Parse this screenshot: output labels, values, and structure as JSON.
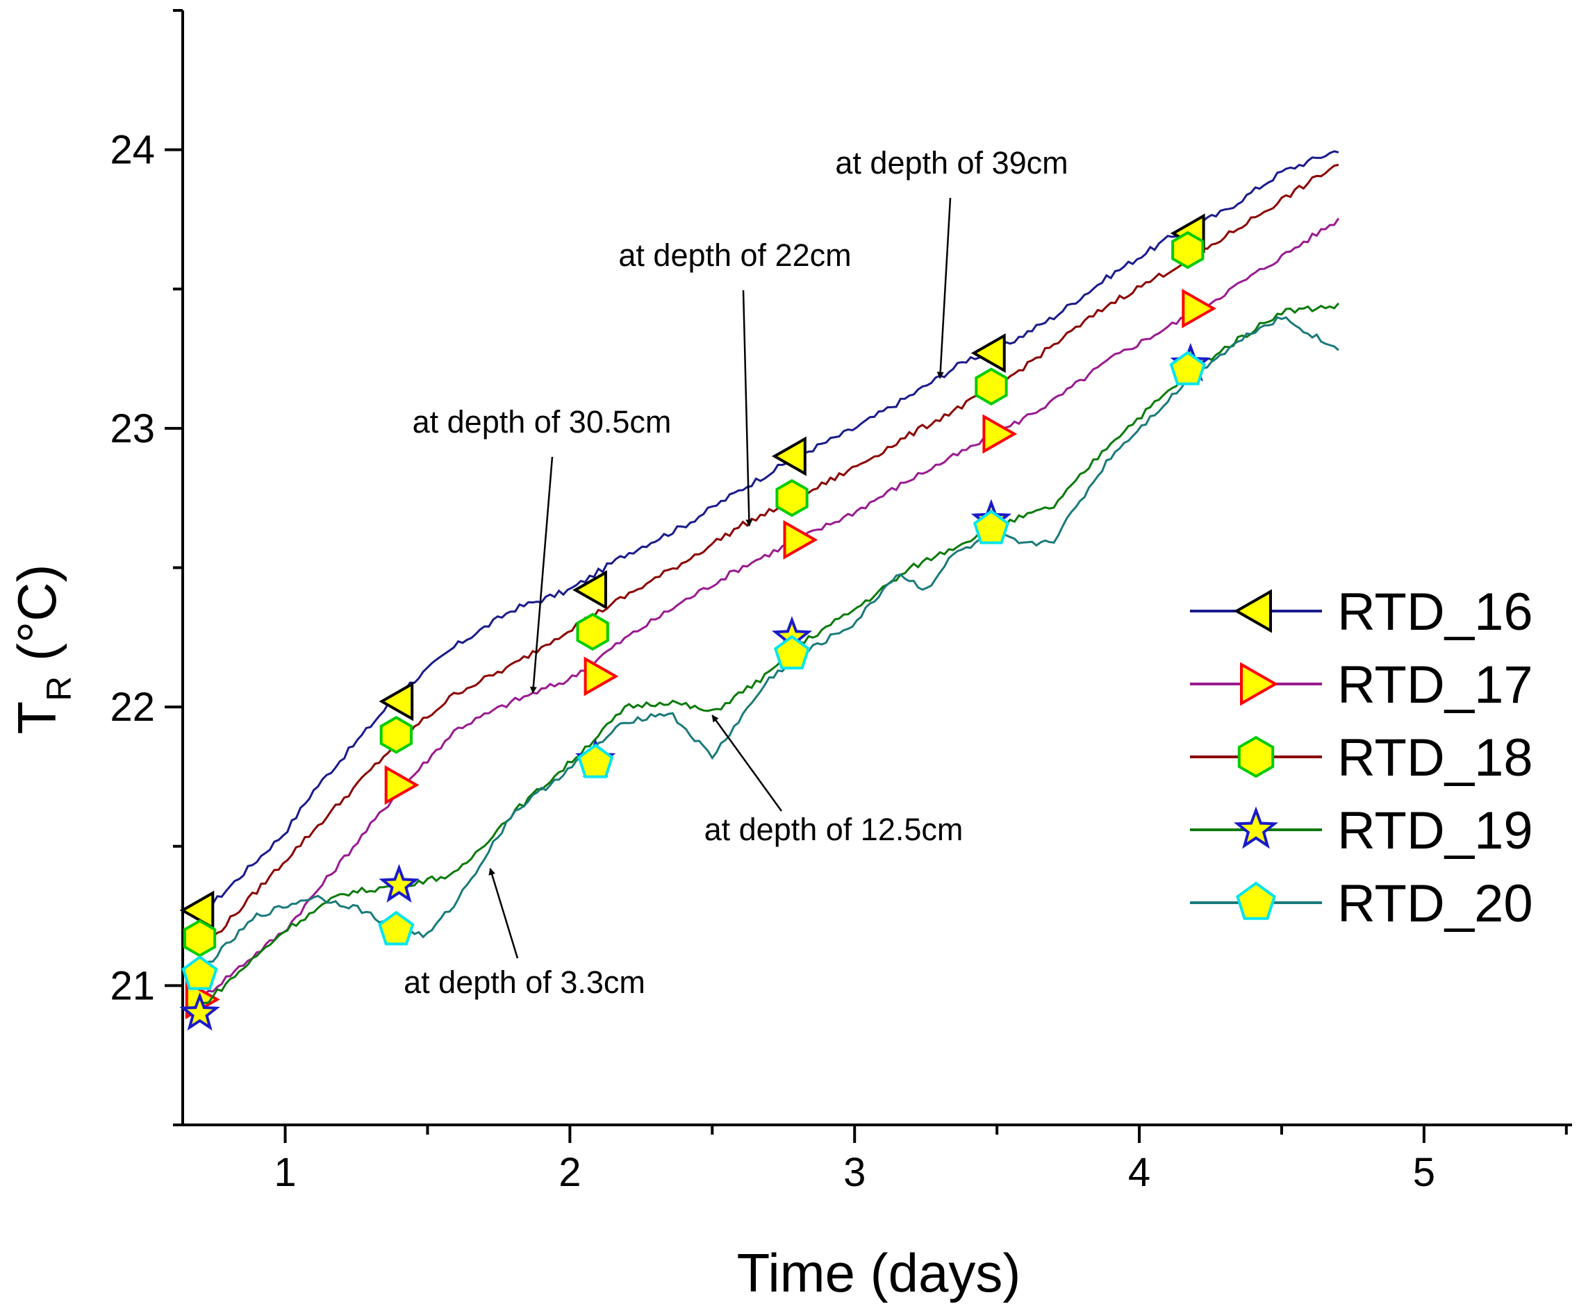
{
  "chart_data": {
    "type": "line",
    "title": "",
    "xlabel": "Time (days)",
    "ylabel_main": "T",
    "ylabel_sub": "R",
    "ylabel_unit": " (°C)",
    "xlim": [
      0.64,
      5.52
    ],
    "ylim": [
      20.5,
      24.5
    ],
    "x_ticks": [
      1,
      2,
      3,
      4,
      5
    ],
    "x_tick_labels": [
      "1",
      "2",
      "3",
      "4",
      "5"
    ],
    "y_ticks": [
      21,
      22,
      23,
      24
    ],
    "y_tick_labels": [
      "21",
      "22",
      "23",
      "24"
    ],
    "grid": false,
    "legend_position": "right",
    "series": [
      {
        "name": "RTD_16",
        "color": "#1a1a8c",
        "marker": "triangle-left",
        "marker_fill": "#ffff00",
        "marker_edge": "#000000",
        "x": [
          0.7,
          1.0,
          1.1,
          1.4,
          1.6,
          1.8,
          2.0,
          2.2,
          2.4,
          2.6,
          2.8,
          3.0,
          3.2,
          3.4,
          3.5,
          3.7,
          3.9,
          4.1,
          4.3,
          4.5,
          4.7
        ],
        "y": [
          21.25,
          21.55,
          21.7,
          22.05,
          22.22,
          22.35,
          22.42,
          22.55,
          22.65,
          22.78,
          22.9,
          23.0,
          23.12,
          23.25,
          23.28,
          23.4,
          23.55,
          23.68,
          23.78,
          23.92,
          24.0
        ],
        "marker_x": [
          0.7,
          1.4,
          2.08,
          2.78,
          3.48,
          4.18
        ],
        "marker_y": [
          21.27,
          22.02,
          22.42,
          22.9,
          23.27,
          23.7
        ]
      },
      {
        "name": "RTD_17",
        "color": "#9a1a90",
        "marker": "triangle-right",
        "marker_fill": "#ffff00",
        "marker_edge": "#ff0000",
        "x": [
          0.7,
          1.0,
          1.4,
          1.6,
          1.8,
          2.0,
          2.2,
          2.4,
          2.6,
          2.8,
          3.0,
          3.2,
          3.5,
          3.7,
          3.9,
          4.2,
          4.4,
          4.7
        ],
        "y": [
          20.95,
          21.2,
          21.7,
          21.92,
          22.02,
          22.1,
          22.25,
          22.38,
          22.5,
          22.6,
          22.7,
          22.82,
          22.98,
          23.1,
          23.25,
          23.42,
          23.55,
          23.75
        ],
        "marker_x": [
          0.7,
          1.4,
          2.1,
          2.8,
          3.5,
          4.2
        ],
        "marker_y": [
          20.95,
          21.72,
          22.11,
          22.6,
          22.98,
          23.43
        ]
      },
      {
        "name": "RTD_18",
        "color": "#8b0000",
        "marker": "hexagon",
        "marker_fill": "#ffff00",
        "marker_edge": "#00cc00",
        "x": [
          0.7,
          1.0,
          1.4,
          1.6,
          1.8,
          2.0,
          2.2,
          2.4,
          2.6,
          2.8,
          3.0,
          3.2,
          3.5,
          3.7,
          3.9,
          4.2,
          4.5,
          4.7
        ],
        "y": [
          21.12,
          21.45,
          21.88,
          22.05,
          22.15,
          22.28,
          22.4,
          22.52,
          22.65,
          22.75,
          22.86,
          22.98,
          23.15,
          23.3,
          23.45,
          23.62,
          23.82,
          23.95
        ],
        "marker_x": [
          0.7,
          1.39,
          2.08,
          2.78,
          3.48,
          4.17
        ],
        "marker_y": [
          21.17,
          21.9,
          22.27,
          22.75,
          23.15,
          23.64
        ]
      },
      {
        "name": "RTD_19",
        "color": "#0a7a0a",
        "marker": "star",
        "marker_fill": "#ffff00",
        "marker_edge": "#1a1acc",
        "x": [
          0.7,
          1.0,
          1.2,
          1.4,
          1.6,
          1.8,
          2.0,
          2.2,
          2.35,
          2.5,
          2.7,
          2.8,
          3.0,
          3.2,
          3.4,
          3.5,
          3.7,
          3.9,
          4.2,
          4.5,
          4.7
        ],
        "y": [
          20.92,
          21.2,
          21.33,
          21.36,
          21.4,
          21.62,
          21.8,
          22.0,
          22.02,
          21.98,
          22.12,
          22.22,
          22.35,
          22.5,
          22.6,
          22.65,
          22.72,
          22.95,
          23.22,
          23.42,
          23.44
        ],
        "marker_x": [
          0.7,
          1.4,
          2.09,
          2.78,
          3.48,
          4.18
        ],
        "marker_y": [
          20.9,
          21.36,
          21.81,
          22.25,
          22.67,
          23.23
        ]
      },
      {
        "name": "RTD_20",
        "color": "#1a7a7a",
        "marker": "pentagon",
        "marker_fill": "#ffff00",
        "marker_edge": "#00e5ee",
        "x": [
          0.7,
          0.9,
          1.1,
          1.25,
          1.4,
          1.5,
          1.6,
          1.8,
          2.0,
          2.2,
          2.35,
          2.5,
          2.7,
          2.8,
          3.0,
          3.15,
          3.25,
          3.35,
          3.5,
          3.6,
          3.7,
          3.9,
          4.2,
          4.4,
          4.5,
          4.7
        ],
        "y": [
          21.05,
          21.25,
          21.32,
          21.28,
          21.2,
          21.18,
          21.3,
          21.62,
          21.78,
          21.95,
          21.98,
          21.82,
          22.1,
          22.18,
          22.3,
          22.48,
          22.42,
          22.55,
          22.62,
          22.58,
          22.6,
          22.9,
          23.2,
          23.35,
          23.4,
          23.28
        ],
        "marker_x": [
          0.7,
          1.39,
          2.09,
          2.78,
          3.48,
          4.17
        ],
        "marker_y": [
          21.04,
          21.2,
          21.8,
          22.19,
          22.64,
          23.21
        ]
      }
    ],
    "annotations": [
      {
        "text": "at depth of 39cm",
        "arrow_to": [
          3.3,
          23.18
        ]
      },
      {
        "text": "at depth of 22cm",
        "arrow_to": [
          2.63,
          22.65
        ]
      },
      {
        "text": "at depth of 30.5cm",
        "arrow_to": [
          1.87,
          22.05
        ]
      },
      {
        "text": "at depth of 12.5cm",
        "arrow_to": [
          2.5,
          21.97
        ]
      },
      {
        "text": "at depth of 3.3cm",
        "arrow_to": [
          1.72,
          21.42
        ]
      }
    ]
  }
}
